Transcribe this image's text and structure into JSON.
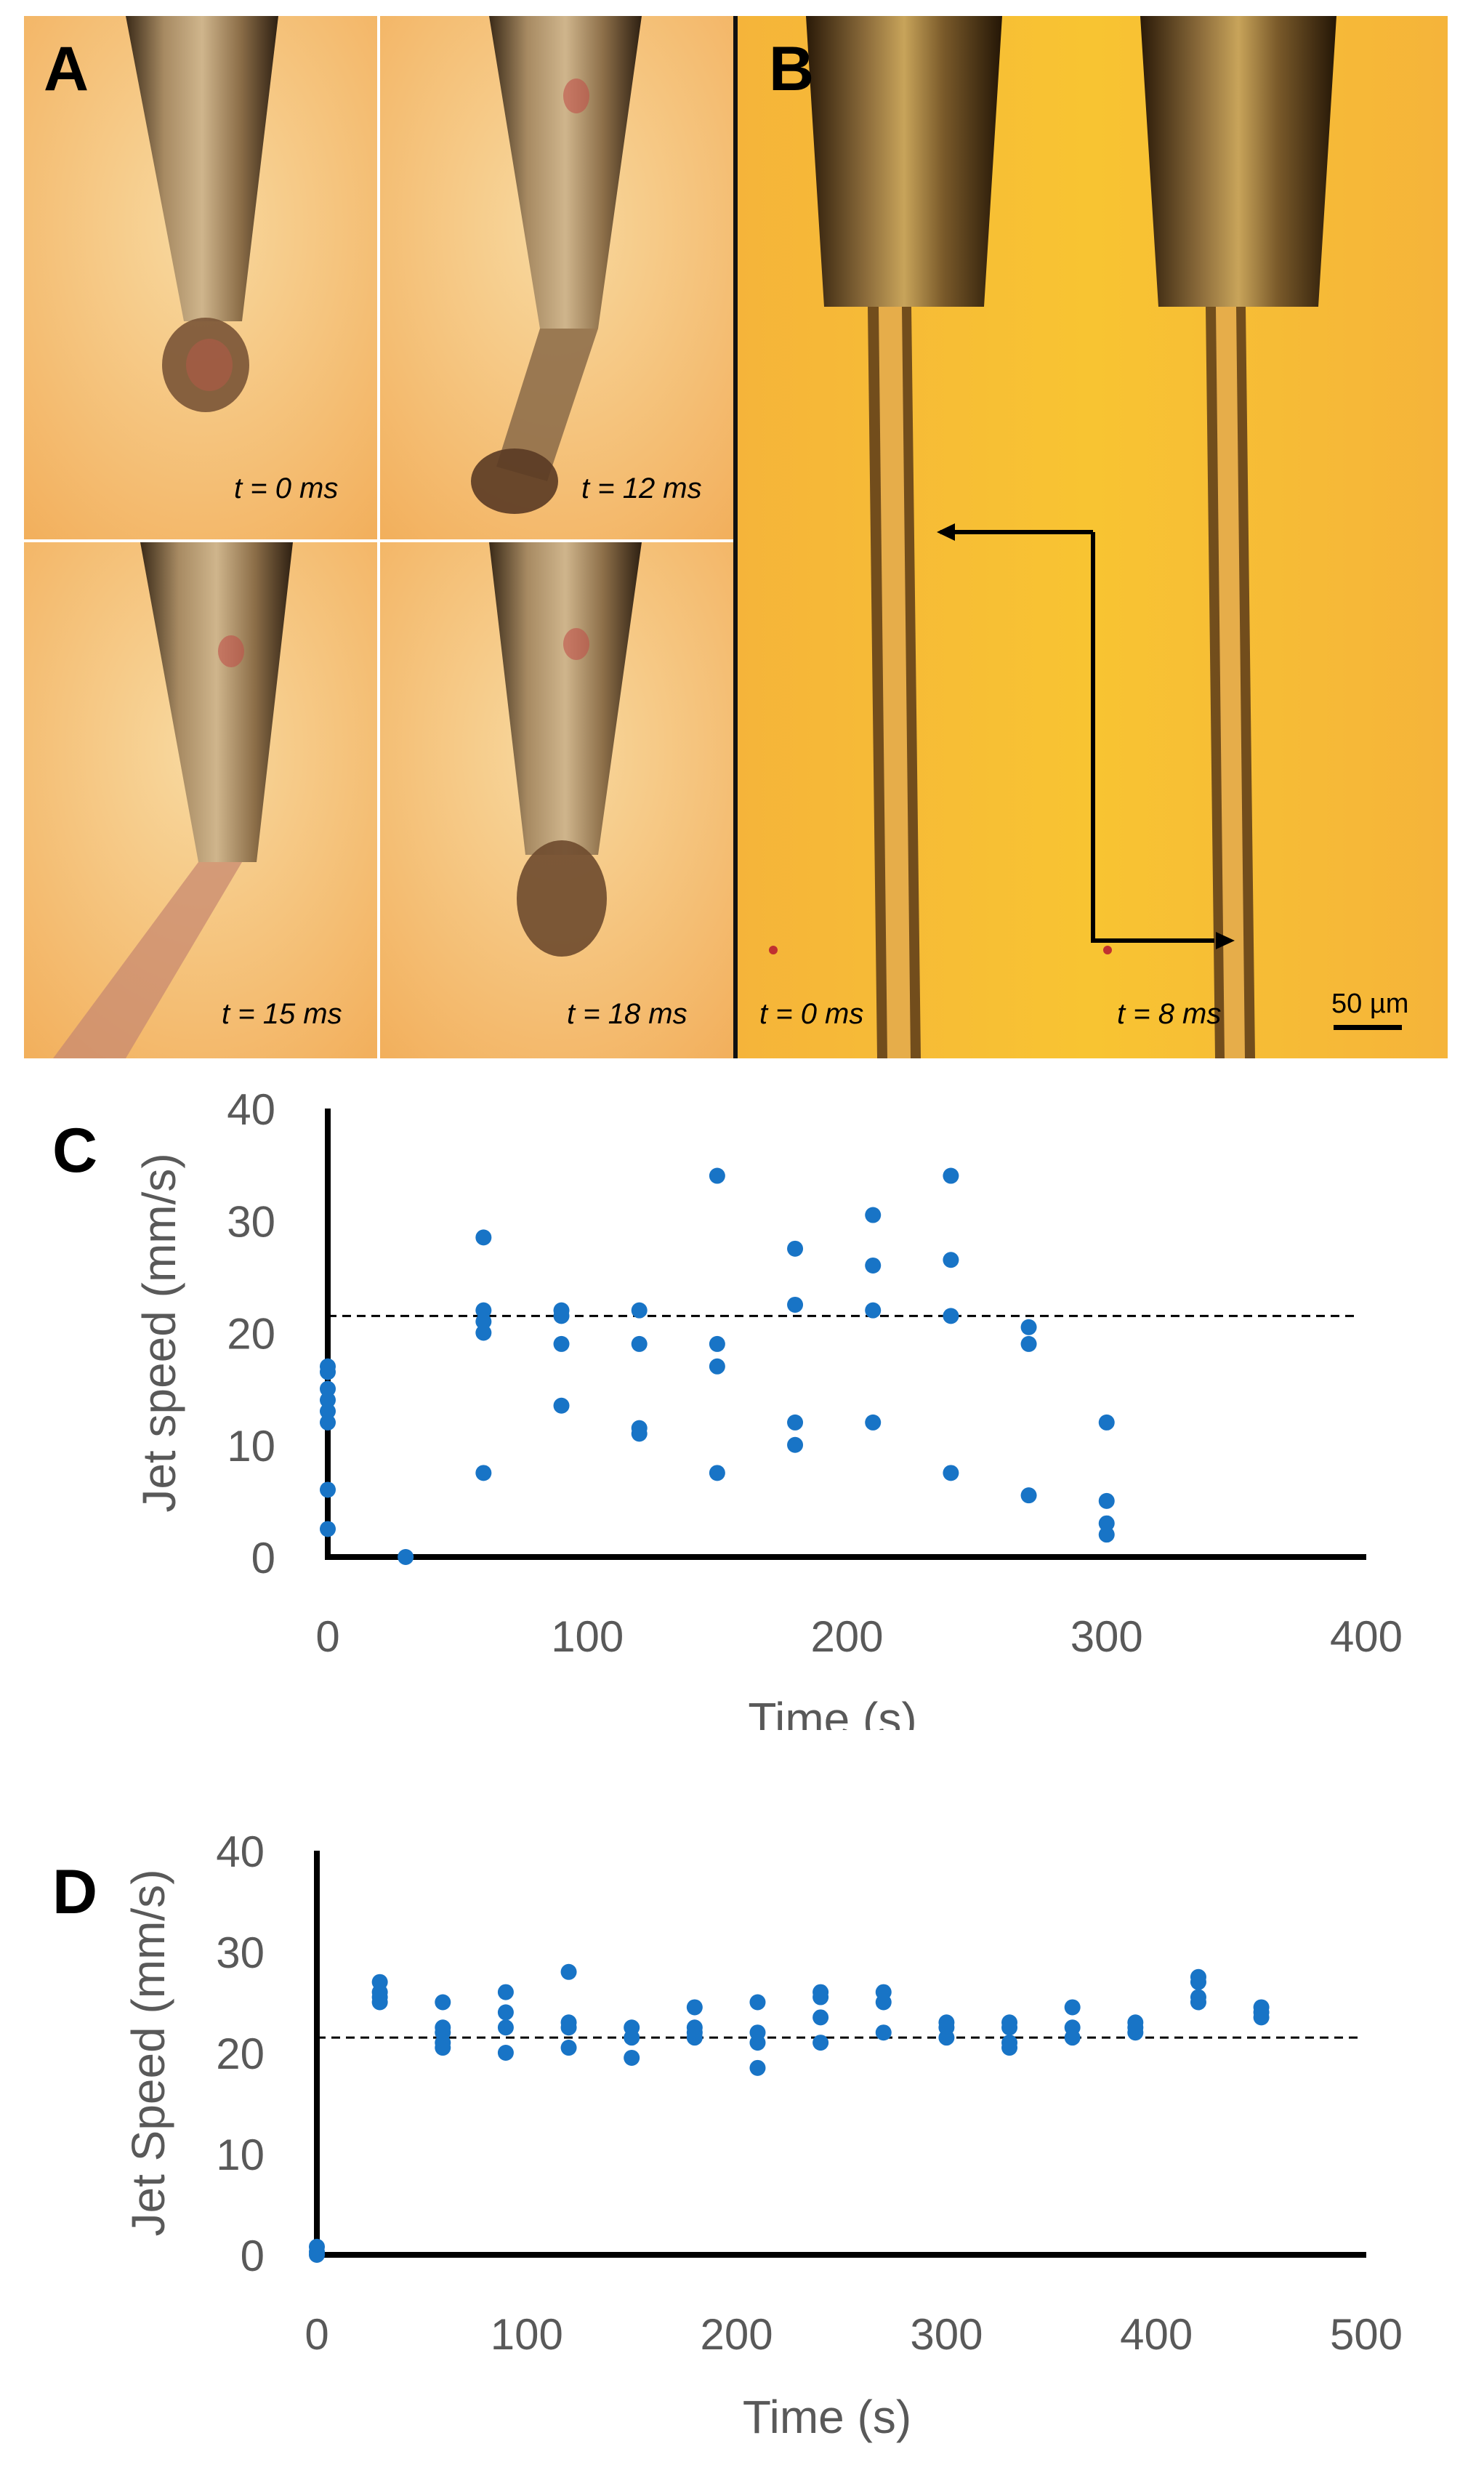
{
  "panel_a": {
    "label": "A",
    "frames": [
      {
        "time": "t = 0 ms"
      },
      {
        "time": "t = 12 ms"
      },
      {
        "time": "t = 15 ms"
      },
      {
        "time": "t = 18 ms"
      }
    ]
  },
  "panel_b": {
    "label": "B",
    "frames": [
      {
        "time": "t = 0 ms"
      },
      {
        "time": "t = 8 ms"
      }
    ],
    "scale_bar": "50 µm"
  },
  "chart_data": [
    {
      "panel": "C",
      "type": "scatter",
      "xlabel": "Time (s)",
      "ylabel": "Jet speed (mm/s)",
      "xlim": [
        0,
        400
      ],
      "ylim": [
        0,
        40
      ],
      "xticks": [
        "0",
        "100",
        "200",
        "300",
        "400"
      ],
      "yticks": [
        "0",
        "10",
        "20",
        "30",
        "40"
      ],
      "reference_line": 21.5,
      "points": [
        [
          0,
          17
        ],
        [
          0,
          16.5
        ],
        [
          0,
          15
        ],
        [
          0,
          14
        ],
        [
          0,
          13
        ],
        [
          0,
          12
        ],
        [
          0,
          6
        ],
        [
          0,
          2.5
        ],
        [
          30,
          0
        ],
        [
          60,
          28.5
        ],
        [
          60,
          22
        ],
        [
          60,
          21
        ],
        [
          60,
          20
        ],
        [
          60,
          7.5
        ],
        [
          90,
          22
        ],
        [
          90,
          21.5
        ],
        [
          90,
          19
        ],
        [
          90,
          13.5
        ],
        [
          120,
          22
        ],
        [
          120,
          19
        ],
        [
          120,
          11.5
        ],
        [
          120,
          11
        ],
        [
          150,
          34
        ],
        [
          150,
          19
        ],
        [
          150,
          17
        ],
        [
          150,
          7.5
        ],
        [
          180,
          27.5
        ],
        [
          180,
          22.5
        ],
        [
          180,
          12
        ],
        [
          180,
          10
        ],
        [
          210,
          30.5
        ],
        [
          210,
          26
        ],
        [
          210,
          22
        ],
        [
          210,
          12
        ],
        [
          240,
          34
        ],
        [
          240,
          26.5
        ],
        [
          240,
          21.5
        ],
        [
          240,
          7.5
        ],
        [
          270,
          20.5
        ],
        [
          270,
          19
        ],
        [
          270,
          5.5
        ],
        [
          300,
          12
        ],
        [
          300,
          5
        ],
        [
          300,
          3
        ],
        [
          300,
          2
        ]
      ]
    },
    {
      "panel": "D",
      "type": "scatter",
      "xlabel": "Time (s)",
      "ylabel": "Jet Speed (mm/s)",
      "xlim": [
        0,
        500
      ],
      "ylim": [
        0,
        40
      ],
      "xticks": [
        "0",
        "100",
        "200",
        "300",
        "400",
        "500"
      ],
      "yticks": [
        "0",
        "10",
        "20",
        "30",
        "40"
      ],
      "reference_line": 21.5,
      "points": [
        [
          0,
          0.8
        ],
        [
          0,
          0.3
        ],
        [
          0,
          0
        ],
        [
          30,
          27
        ],
        [
          30,
          26
        ],
        [
          30,
          25.5
        ],
        [
          30,
          25
        ],
        [
          60,
          25
        ],
        [
          60,
          22.5
        ],
        [
          60,
          22
        ],
        [
          60,
          21
        ],
        [
          60,
          20.5
        ],
        [
          90,
          26
        ],
        [
          90,
          24
        ],
        [
          90,
          22.5
        ],
        [
          90,
          20
        ],
        [
          120,
          28
        ],
        [
          120,
          23
        ],
        [
          120,
          22.5
        ],
        [
          120,
          20.5
        ],
        [
          150,
          22.5
        ],
        [
          150,
          21.5
        ],
        [
          150,
          19.5
        ],
        [
          180,
          24.5
        ],
        [
          180,
          22.5
        ],
        [
          180,
          22
        ],
        [
          180,
          21.5
        ],
        [
          210,
          25
        ],
        [
          210,
          22
        ],
        [
          210,
          21
        ],
        [
          210,
          18.5
        ],
        [
          240,
          26
        ],
        [
          240,
          25.5
        ],
        [
          240,
          23.5
        ],
        [
          240,
          21
        ],
        [
          270,
          26
        ],
        [
          270,
          25
        ],
        [
          270,
          22
        ],
        [
          300,
          23
        ],
        [
          300,
          22.5
        ],
        [
          300,
          21.5
        ],
        [
          330,
          23
        ],
        [
          330,
          22.5
        ],
        [
          330,
          21
        ],
        [
          330,
          20.5
        ],
        [
          360,
          24.5
        ],
        [
          360,
          22.5
        ],
        [
          360,
          21.5
        ],
        [
          390,
          23
        ],
        [
          390,
          22.5
        ],
        [
          390,
          22
        ],
        [
          420,
          27.5
        ],
        [
          420,
          27
        ],
        [
          420,
          25.5
        ],
        [
          420,
          25
        ],
        [
          450,
          24.5
        ],
        [
          450,
          24
        ],
        [
          450,
          23.5
        ]
      ]
    }
  ],
  "colors": {
    "point": "#1874C6",
    "axis": "#000000",
    "tick_text": "#595959",
    "background_orange": "#F2A94E",
    "background_yellow": "#F8C230"
  }
}
